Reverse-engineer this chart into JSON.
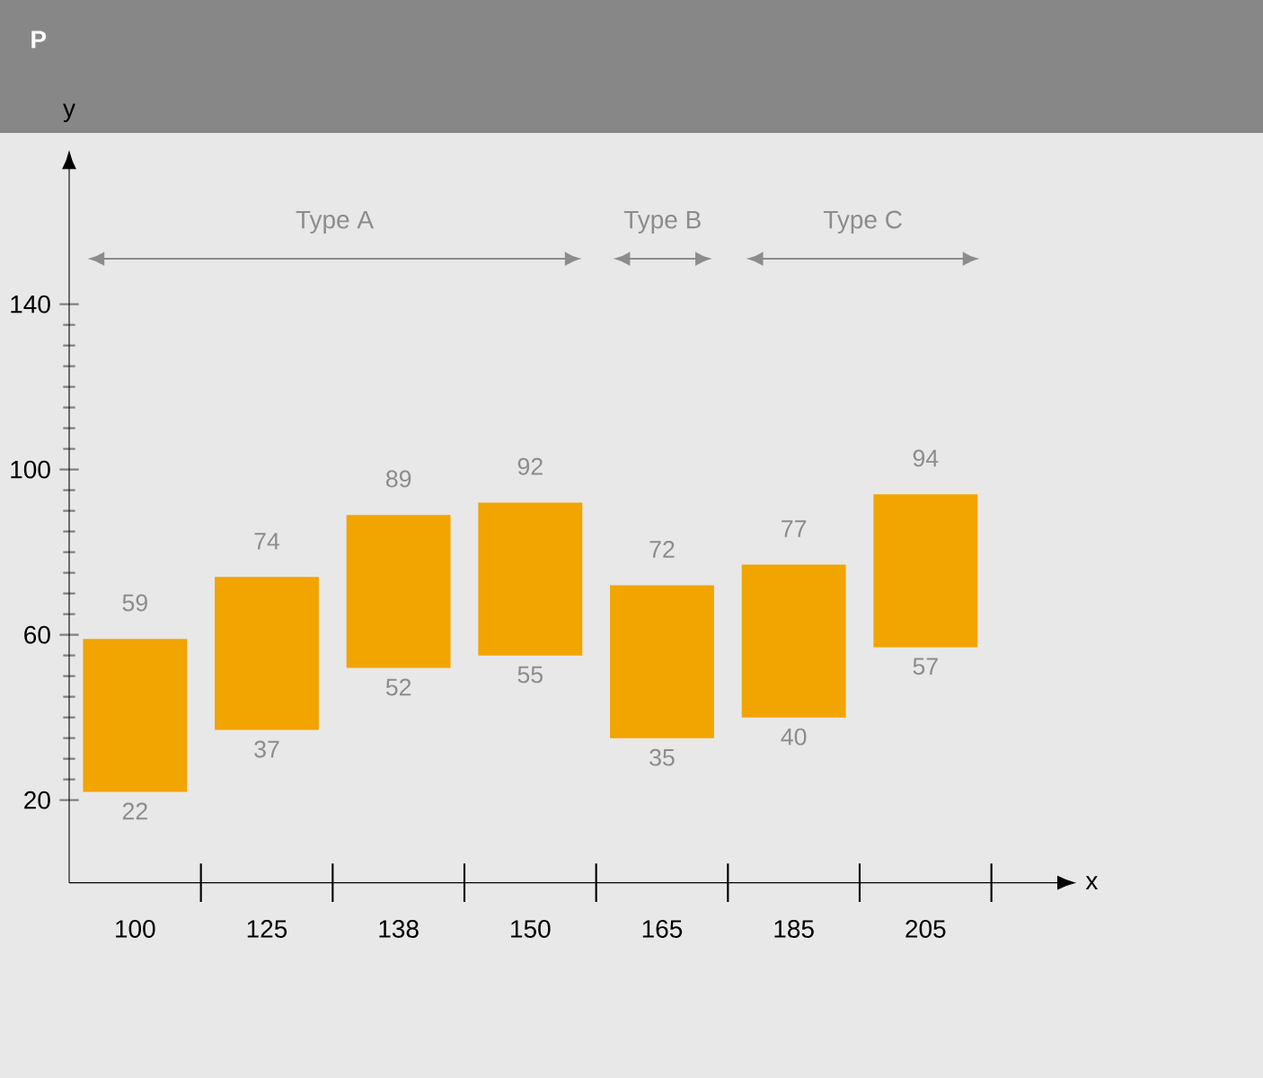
{
  "chart_data": {
    "type": "bar",
    "title": "P",
    "xlabel": "x",
    "ylabel": "y",
    "categories": [
      "100",
      "125",
      "138",
      "150",
      "165",
      "185",
      "205"
    ],
    "base": [
      22,
      37,
      52,
      55,
      35,
      40,
      57
    ],
    "values": [
      37,
      37,
      37,
      37,
      37,
      37,
      37
    ],
    "value_labels": [
      "59",
      "74",
      "89",
      "92",
      "72",
      "77",
      "94"
    ],
    "color": "#f2a400",
    "ylim": [
      0,
      175
    ],
    "yticks": [
      20,
      60,
      100,
      140
    ],
    "annotations": [
      "Type A",
      "Type B",
      "Type C",
      {
        "text": "22",
        "x": "100",
        "y": 22
      },
      {
        "text": "37",
        "x": "125",
        "y": 37
      },
      {
        "text": "52",
        "x": "138",
        "y": 52
      },
      {
        "text": "55",
        "x": "150",
        "y": 55
      },
      {
        "text": "35",
        "x": "165",
        "y": 35
      },
      {
        "text": "40",
        "x": "185",
        "y": 40
      },
      {
        "text": "57",
        "x": "205",
        "y": 57
      }
    ],
    "grid": false
  }
}
